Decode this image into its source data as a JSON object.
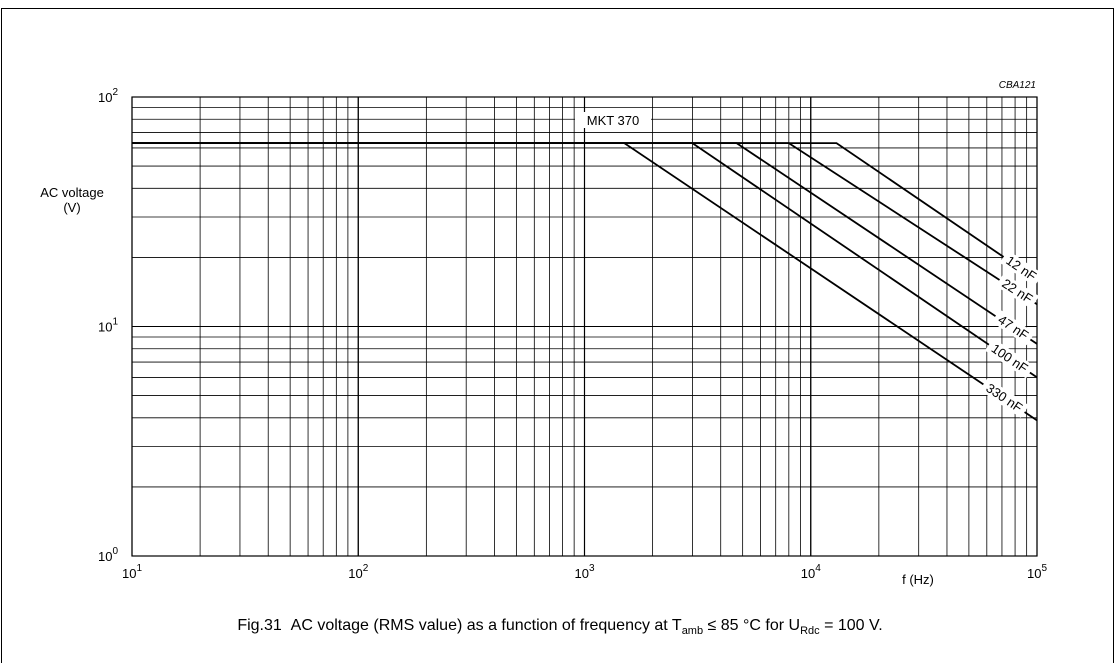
{
  "figure_id": "CBA121",
  "caption": {
    "fig": "Fig.31",
    "text_pre": "AC voltage (RMS value) as a function of frequency at T",
    "sub1": "amb",
    "text_mid": " ≤ 85 °C for U",
    "sub2": "Rdc",
    "text_post": " = 100 V."
  },
  "chart_data": {
    "type": "line",
    "title": "MKT 370",
    "xlabel": "f (Hz)",
    "ylabel_line1": "AC voltage",
    "ylabel_line2": "(V)",
    "xscale": "log",
    "yscale": "log",
    "xlim": [
      10,
      100000
    ],
    "ylim": [
      1,
      100
    ],
    "grid": true,
    "x_ticks": [
      {
        "value": 10,
        "base": "10",
        "exp": "1"
      },
      {
        "value": 100,
        "base": "10",
        "exp": "2"
      },
      {
        "value": 1000,
        "base": "10",
        "exp": "3"
      },
      {
        "value": 10000,
        "base": "10",
        "exp": "4"
      },
      {
        "value": 100000,
        "base": "10",
        "exp": "5"
      }
    ],
    "y_ticks": [
      {
        "value": 1,
        "base": "10",
        "exp": "0"
      },
      {
        "value": 10,
        "base": "10",
        "exp": "1"
      },
      {
        "value": 100,
        "base": "10",
        "exp": "2"
      }
    ],
    "series": [
      {
        "name": "12 nF",
        "points": [
          [
            10,
            63
          ],
          [
            13000,
            63
          ],
          [
            100000,
            16
          ]
        ]
      },
      {
        "name": "22 nF",
        "points": [
          [
            10,
            63
          ],
          [
            8000,
            63
          ],
          [
            100000,
            12.5
          ]
        ]
      },
      {
        "name": "47 nF",
        "points": [
          [
            10,
            63
          ],
          [
            4700,
            63
          ],
          [
            100000,
            8.4
          ]
        ]
      },
      {
        "name": "100 nF",
        "points": [
          [
            10,
            63
          ],
          [
            3000,
            63
          ],
          [
            100000,
            6
          ]
        ]
      },
      {
        "name": "330 nF",
        "points": [
          [
            10,
            63
          ],
          [
            1500,
            63
          ],
          [
            100000,
            3.9
          ]
        ]
      }
    ]
  }
}
